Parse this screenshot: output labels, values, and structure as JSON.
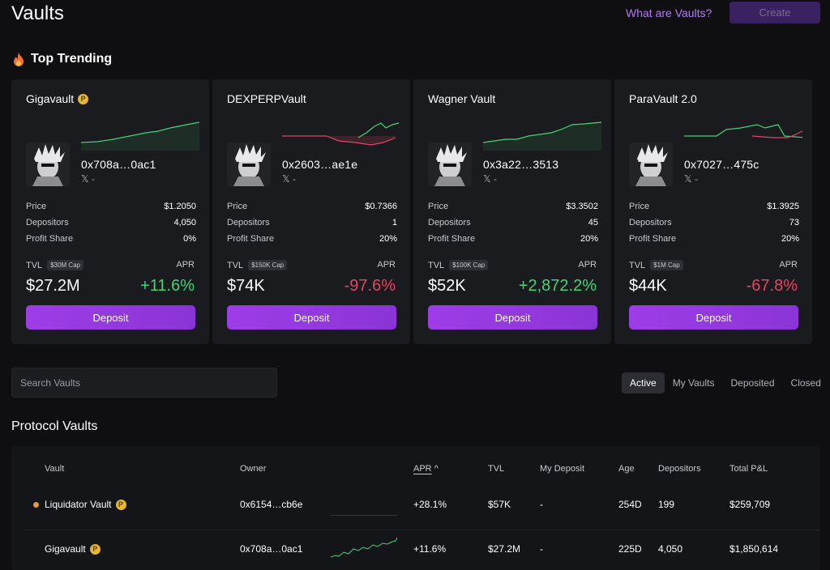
{
  "header": {
    "title": "Vaults",
    "help_link": "What are Vaults?",
    "create_label": "Create"
  },
  "trending": {
    "title": "Top Trending",
    "stat_labels": {
      "price": "Price",
      "depositors": "Depositors",
      "profit_share": "Profit Share",
      "tvl": "TVL",
      "apr": "APR"
    },
    "deposit_label": "Deposit",
    "x_label": "𝕏 -",
    "cards": [
      {
        "name": "Gigavault",
        "badge": "P",
        "owner": "0x708a…0ac1",
        "price": "$1.2050",
        "depositors": "4,050",
        "profit_share": "0%",
        "cap": "$30M Cap",
        "tvl": "$27.2M",
        "apr": "+11.6%",
        "apr_sign": "pos"
      },
      {
        "name": "DEXPERPVault",
        "badge": "",
        "owner": "0x2603…ae1e",
        "price": "$0.7366",
        "depositors": "1",
        "profit_share": "20%",
        "cap": "$150K Cap",
        "tvl": "$74K",
        "apr": "-97.6%",
        "apr_sign": "neg"
      },
      {
        "name": "Wagner Vault",
        "badge": "",
        "owner": "0x3a22…3513",
        "price": "$3.3502",
        "depositors": "45",
        "profit_share": "20%",
        "cap": "$100K Cap",
        "tvl": "$52K",
        "apr": "+2,872.2%",
        "apr_sign": "pos"
      },
      {
        "name": "ParaVault 2.0",
        "badge": "",
        "owner": "0x7027…475c",
        "price": "$1.3925",
        "depositors": "73",
        "profit_share": "20%",
        "cap": "$1M Cap",
        "tvl": "$44K",
        "apr": "-67.8%",
        "apr_sign": "neg"
      }
    ]
  },
  "search": {
    "placeholder": "Search Vaults"
  },
  "filters": [
    "Active",
    "My Vaults",
    "Deposited",
    "Closed"
  ],
  "protocol": {
    "title": "Protocol Vaults",
    "columns": {
      "vault": "Vault",
      "owner": "Owner",
      "apr": "APR",
      "tvl": "TVL",
      "my_deposit": "My Deposit",
      "age": "Age",
      "depositors": "Depositors",
      "pnl": "Total P&L"
    },
    "sort_arrow": "^",
    "rows": [
      {
        "name": "Liquidator Vault",
        "badge": "P",
        "owner": "0x6154…cb6e",
        "apr": "+28.1%",
        "tvl": "$57K",
        "my_deposit": "-",
        "age": "254D",
        "depositors": "199",
        "pnl": "$259,709"
      },
      {
        "name": "Gigavault",
        "badge": "P",
        "owner": "0x708a…0ac1",
        "apr": "+11.6%",
        "tvl": "$27.2M",
        "my_deposit": "-",
        "age": "225D",
        "depositors": "4,050",
        "pnl": "$1,850,614"
      }
    ]
  },
  "colors": {
    "accent": "#9e3de8",
    "positive": "#4ad078",
    "negative": "#e54466",
    "link": "#b27cf2"
  }
}
